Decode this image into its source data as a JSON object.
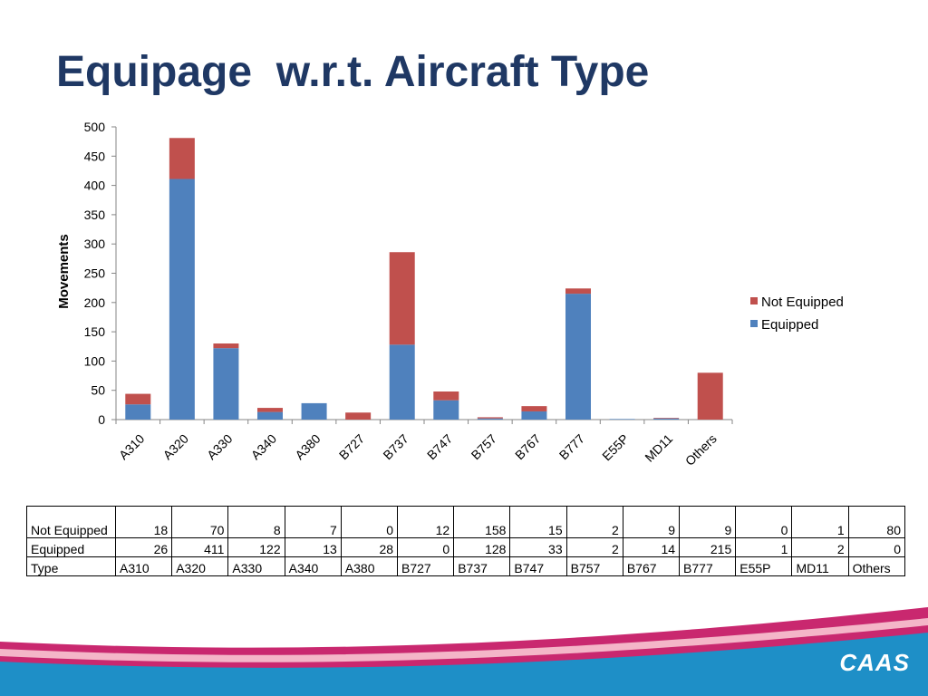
{
  "slide": {
    "title": "Equipage  w.r.t. Aircraft Type"
  },
  "chart_data": {
    "type": "bar",
    "stacked": true,
    "categories": [
      "A310",
      "A320",
      "A330",
      "A340",
      "A380",
      "B727",
      "B737",
      "B747",
      "B757",
      "B767",
      "B777",
      "E55P",
      "MD11",
      "Others"
    ],
    "series": [
      {
        "name": "Equipped",
        "color": "#4f81bd",
        "values": [
          26,
          411,
          122,
          13,
          28,
          0,
          128,
          33,
          2,
          14,
          215,
          1,
          2,
          0
        ]
      },
      {
        "name": "Not Equipped",
        "color": "#c0504d",
        "values": [
          18,
          70,
          8,
          7,
          0,
          12,
          158,
          15,
          2,
          9,
          9,
          0,
          1,
          80
        ]
      }
    ],
    "ylabel": "Movements",
    "ylim": [
      0,
      500
    ],
    "yticks": [
      0,
      50,
      100,
      150,
      200,
      250,
      300,
      350,
      400,
      450,
      500
    ],
    "grid": false,
    "legend_position": "right",
    "legend": [
      "Not Equipped",
      "Equipped"
    ]
  },
  "table": {
    "rows": [
      {
        "header": "Not Equipped",
        "values": [
          "18",
          "70",
          "8",
          "7",
          "0",
          "12",
          "158",
          "15",
          "2",
          "9",
          "9",
          "0",
          "1",
          "80"
        ]
      },
      {
        "header": "Equipped",
        "values": [
          "26",
          "411",
          "122",
          "13",
          "28",
          "0",
          "128",
          "33",
          "2",
          "14",
          "215",
          "1",
          "2",
          "0"
        ]
      },
      {
        "header": "Type",
        "values": [
          "A310",
          "A320",
          "A330",
          "A340",
          "A380",
          "B727",
          "B737",
          "B747",
          "B757",
          "B767",
          "B777",
          "E55P",
          "MD11",
          "Others"
        ]
      }
    ]
  },
  "footer": {
    "logo_text": "CAAS"
  }
}
